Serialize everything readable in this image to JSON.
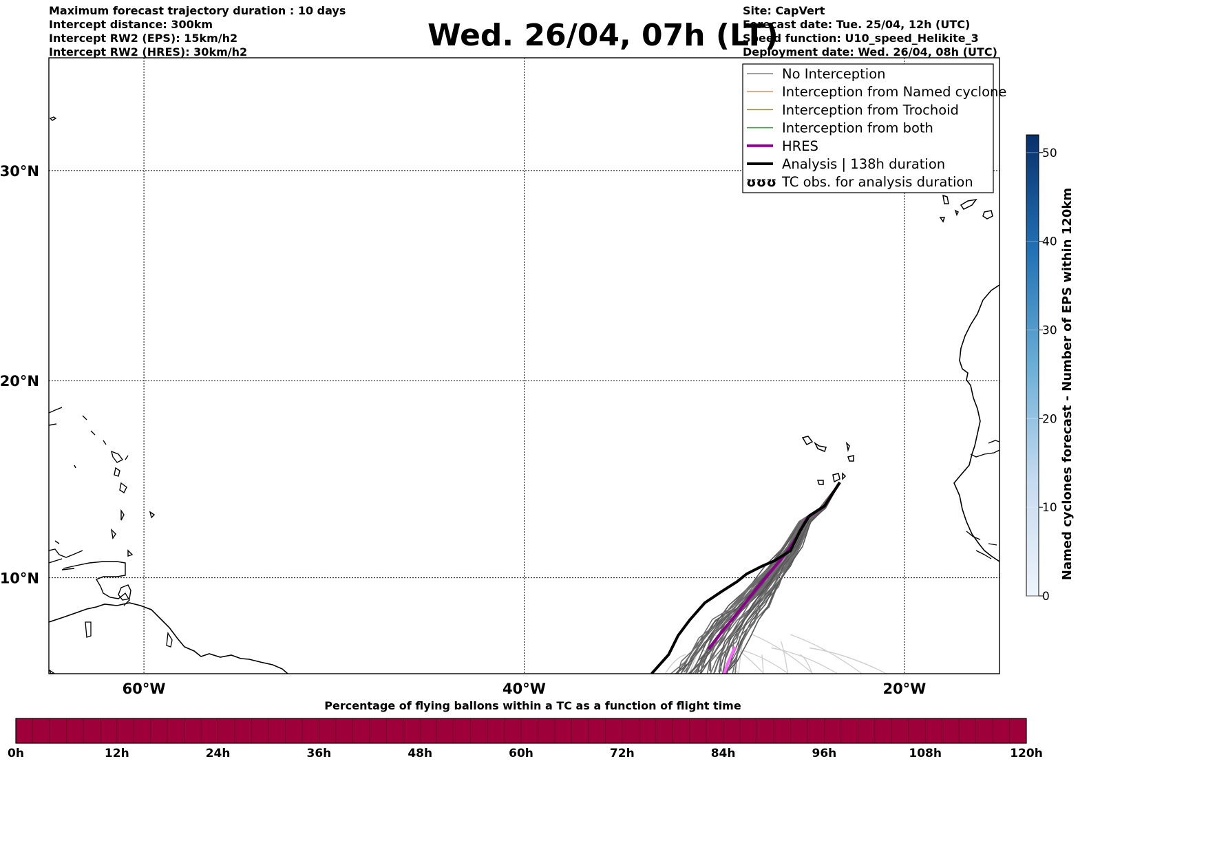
{
  "header": {
    "left_lines": [
      "Maximum forecast trajectory duration : 10 days",
      "Intercept distance: 300km",
      "Intercept RW2 (EPS):  15km/h2",
      "Intercept RW2 (HRES): 30km/h2"
    ],
    "right_lines": [
      "Site: CapVert",
      "Forecast date: Tue. 25/04, 12h (UTC)",
      "Speed function: U10_speed_Helikite_3",
      "Deployment date: Wed. 26/04, 08h (UTC)"
    ],
    "title": "Wed. 26/04, 07h (LT)"
  },
  "map": {
    "lon_ticks": [
      "60°W",
      "40°W",
      "20°W"
    ],
    "lat_ticks": [
      "30°N",
      "20°N",
      "10°N"
    ],
    "legend": [
      {
        "label": "No Interception",
        "color": "#808080",
        "style": "thin"
      },
      {
        "label": "Interception from Named cyclone",
        "color": "#ff7f50",
        "style": "thin"
      },
      {
        "label": "Interception from Trochoid",
        "color": "#9a8a2a",
        "style": "thin"
      },
      {
        "label": "Interception from both",
        "color": "#2e9e2e",
        "style": "thin"
      },
      {
        "label": "HRES",
        "color": "#8b008b",
        "style": "thick"
      },
      {
        "label": "Analysis | 138h duration",
        "color": "#000000",
        "style": "thick"
      },
      {
        "label": "TC obs. for analysis duration",
        "color": "#000000",
        "style": "symbol"
      }
    ]
  },
  "colorbar_right": {
    "label": "Named cyclones forecast - Number of EPS within 120km",
    "ticks": [
      "0",
      "10",
      "20",
      "30",
      "40",
      "50"
    ]
  },
  "colorbar_bottom": {
    "title": "Percentage of flying ballons within a TC as a function of flight time",
    "ticks": [
      "0h",
      "12h",
      "24h",
      "36h",
      "48h",
      "60h",
      "72h",
      "84h",
      "96h",
      "108h",
      "120h"
    ],
    "fill_color": "#9e003a"
  },
  "chart_data": {
    "type": "line",
    "title": "Wed. 26/04, 07h (LT)",
    "xlabel": "",
    "ylabel": "",
    "xlim": [
      -65,
      -15
    ],
    "ylim": [
      5,
      35
    ],
    "grid": true,
    "legend_position": "top-right",
    "series": [
      {
        "name": "Analysis | 138h duration",
        "color": "#000000",
        "x": [
          -23.4,
          -24.2,
          -25.0,
          -25.5,
          -26.0,
          -26.8,
          -27.5,
          -28.3,
          -28.8,
          -29.6,
          -30.5,
          -31.3,
          -31.9,
          -32.4,
          -33.3
        ],
        "y": [
          14.9,
          13.7,
          13.2,
          12.4,
          11.4,
          10.9,
          10.6,
          10.2,
          9.8,
          9.3,
          8.7,
          7.8,
          7.0,
          6.0,
          5.0
        ]
      },
      {
        "name": "HRES",
        "color": "#8b008b",
        "x": [
          -23.4,
          -24.2,
          -25.1,
          -25.6,
          -26.2,
          -26.8,
          -27.4,
          -27.9,
          -28.6,
          -29.1,
          -29.6,
          -30.3
        ],
        "y": [
          14.9,
          13.7,
          13.1,
          12.2,
          11.3,
          10.6,
          9.9,
          9.3,
          8.4,
          7.8,
          7.2,
          6.3
        ]
      }
    ]
  }
}
